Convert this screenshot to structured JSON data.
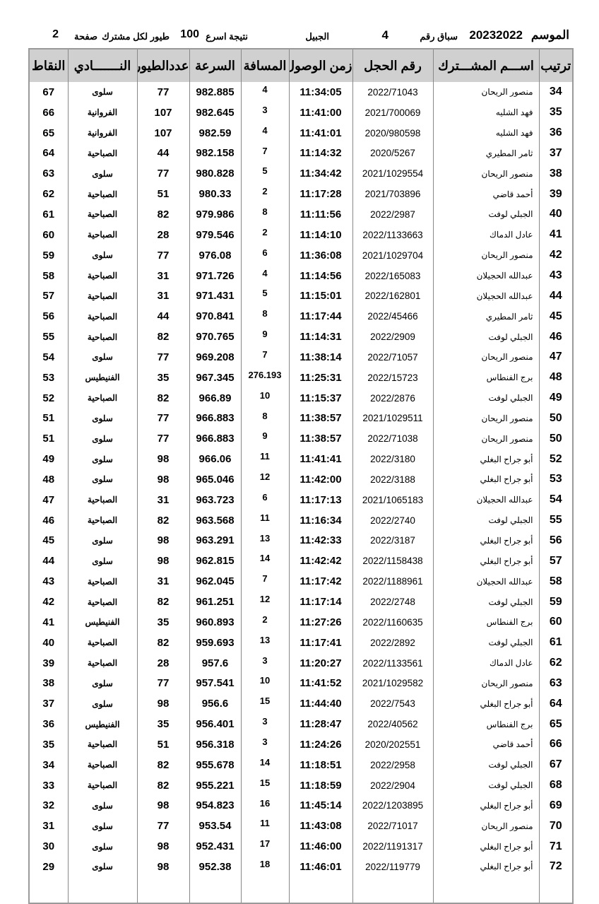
{
  "header": {
    "season_label": "الموسم",
    "season": "20232022",
    "race_label": "سباق رقم",
    "race_number": "4",
    "location": "الجبيل",
    "result_label": "نتيجة اسرع",
    "bird_count": "100",
    "per_member_label": "طيور لكل مشترك",
    "page_label": "صفحة",
    "page_number": "2"
  },
  "columns": {
    "rank": "ترتيب",
    "name": "اســـم المشـــترك",
    "ring": "رقم الحجل",
    "time": "زمن الوصول",
    "distance": "المسافة",
    "speed": "السرعة",
    "birds": "عددالطيور",
    "club": "النـــــــادي",
    "points": "النقاط"
  },
  "rows": [
    [
      "34",
      "منصور الريحان",
      "2022/71043",
      "11:34:05",
      "4",
      "982.885",
      "77",
      "سلوى",
      "67"
    ],
    [
      "35",
      "فهد الشليه",
      "2021/700069",
      "11:41:00",
      "3",
      "982.645",
      "107",
      "الفروانية",
      "66"
    ],
    [
      "36",
      "فهد الشليه",
      "2020/980598",
      "11:41:01",
      "4",
      "982.59",
      "107",
      "الفروانية",
      "65"
    ],
    [
      "37",
      "ثامر المطيري",
      "2020/5267",
      "11:14:32",
      "7",
      "982.158",
      "44",
      "الصباحية",
      "64"
    ],
    [
      "38",
      "منصور الريحان",
      "2021/1029554",
      "11:34:42",
      "5",
      "980.828",
      "77",
      "سلوى",
      "63"
    ],
    [
      "39",
      "أحمد قاضي",
      "2021/703896",
      "11:17:28",
      "2",
      "980.33",
      "51",
      "الصباحية",
      "62"
    ],
    [
      "40",
      "الجبلي لوفت",
      "2022/2987",
      "11:11:56",
      "8",
      "979.986",
      "82",
      "الصباحية",
      "61"
    ],
    [
      "41",
      "عادل الدماك",
      "2022/1133663",
      "11:14:10",
      "2",
      "979.546",
      "28",
      "الصباحية",
      "60"
    ],
    [
      "42",
      "منصور الريحان",
      "2021/1029704",
      "11:36:08",
      "6",
      "976.08",
      "77",
      "سلوى",
      "59"
    ],
    [
      "43",
      "عبدالله الحجيلان",
      "2022/165083",
      "11:14:56",
      "4",
      "971.726",
      "31",
      "الصباحية",
      "58"
    ],
    [
      "44",
      "عبدالله الحجيلان",
      "2022/162801",
      "11:15:01",
      "5",
      "971.431",
      "31",
      "الصباحية",
      "57"
    ],
    [
      "45",
      "ثامر المطيري",
      "2022/45466",
      "11:17:44",
      "8",
      "970.841",
      "44",
      "الصباحية",
      "56"
    ],
    [
      "46",
      "الجبلي لوفت",
      "2022/2909",
      "11:14:31",
      "9",
      "970.765",
      "82",
      "الصباحية",
      "55"
    ],
    [
      "47",
      "منصور الريحان",
      "2022/71057",
      "11:38:14",
      "7",
      "969.208",
      "77",
      "سلوى",
      "54"
    ],
    [
      "48",
      "برج الفنطاس",
      "2022/15723",
      "11:25:31",
      "276.193",
      "967.345",
      "35",
      "الفنيطيس",
      "53"
    ],
    [
      "49",
      "الجبلي لوفت",
      "2022/2876",
      "11:15:37",
      "10",
      "966.89",
      "82",
      "الصباحية",
      "52"
    ],
    [
      "50",
      "منصور الريحان",
      "2021/1029511",
      "11:38:57",
      "8",
      "966.883",
      "77",
      "سلوى",
      "51"
    ],
    [
      "50",
      "منصور الريحان",
      "2022/71038",
      "11:38:57",
      "9",
      "966.883",
      "77",
      "سلوى",
      "51"
    ],
    [
      "52",
      "أبو جراح البغلي",
      "2022/3180",
      "11:41:41",
      "11",
      "966.06",
      "98",
      "سلوى",
      "49"
    ],
    [
      "53",
      "أبو جراح البغلي",
      "2022/3188",
      "11:42:00",
      "12",
      "965.046",
      "98",
      "سلوى",
      "48"
    ],
    [
      "54",
      "عبدالله الحجيلان",
      "2021/1065183",
      "11:17:13",
      "6",
      "963.723",
      "31",
      "الصباحية",
      "47"
    ],
    [
      "55",
      "الجبلي لوفت",
      "2022/2740",
      "11:16:34",
      "11",
      "963.568",
      "82",
      "الصباحية",
      "46"
    ],
    [
      "56",
      "أبو جراح البغلي",
      "2022/3187",
      "11:42:33",
      "13",
      "963.291",
      "98",
      "سلوى",
      "45"
    ],
    [
      "57",
      "أبو جراح البغلي",
      "2022/1158438",
      "11:42:42",
      "14",
      "962.815",
      "98",
      "سلوى",
      "44"
    ],
    [
      "58",
      "عبدالله الحجيلان",
      "2022/1188961",
      "11:17:42",
      "7",
      "962.045",
      "31",
      "الصباحية",
      "43"
    ],
    [
      "59",
      "الجبلي لوفت",
      "2022/2748",
      "11:17:14",
      "12",
      "961.251",
      "82",
      "الصباحية",
      "42"
    ],
    [
      "60",
      "برج الفنطاس",
      "2022/1160635",
      "11:27:26",
      "2",
      "960.893",
      "35",
      "الفنيطيس",
      "41"
    ],
    [
      "61",
      "الجبلي لوفت",
      "2022/2892",
      "11:17:41",
      "13",
      "959.693",
      "82",
      "الصباحية",
      "40"
    ],
    [
      "62",
      "عادل الدماك",
      "2022/1133561",
      "11:20:27",
      "3",
      "957.6",
      "28",
      "الصباحية",
      "39"
    ],
    [
      "63",
      "منصور الريحان",
      "2021/1029582",
      "11:41:52",
      "10",
      "957.541",
      "77",
      "سلوى",
      "38"
    ],
    [
      "64",
      "أبو جراح البغلي",
      "2022/7543",
      "11:44:40",
      "15",
      "956.6",
      "98",
      "سلوى",
      "37"
    ],
    [
      "65",
      "برج الفنطاس",
      "2022/40562",
      "11:28:47",
      "3",
      "956.401",
      "35",
      "الفنيطيس",
      "36"
    ],
    [
      "66",
      "أحمد قاضي",
      "2020/202551",
      "11:24:26",
      "3",
      "956.318",
      "51",
      "الصباحية",
      "35"
    ],
    [
      "67",
      "الجبلي لوفت",
      "2022/2958",
      "11:18:51",
      "14",
      "955.678",
      "82",
      "الصباحية",
      "34"
    ],
    [
      "68",
      "الجبلي لوفت",
      "2022/2904",
      "11:18:59",
      "15",
      "955.221",
      "82",
      "الصباحية",
      "33"
    ],
    [
      "69",
      "أبو جراح البغلي",
      "2022/1203895",
      "11:45:14",
      "16",
      "954.823",
      "98",
      "سلوى",
      "32"
    ],
    [
      "70",
      "منصور الريحان",
      "2022/71017",
      "11:43:08",
      "11",
      "953.54",
      "77",
      "سلوى",
      "31"
    ],
    [
      "71",
      "أبو جراح البغلي",
      "2022/1191317",
      "11:46:00",
      "17",
      "952.431",
      "98",
      "سلوى",
      "30"
    ],
    [
      "72",
      "أبو جراح البغلي",
      "2022/119779",
      "11:46:01",
      "18",
      "952.38",
      "98",
      "سلوى",
      "29"
    ]
  ]
}
